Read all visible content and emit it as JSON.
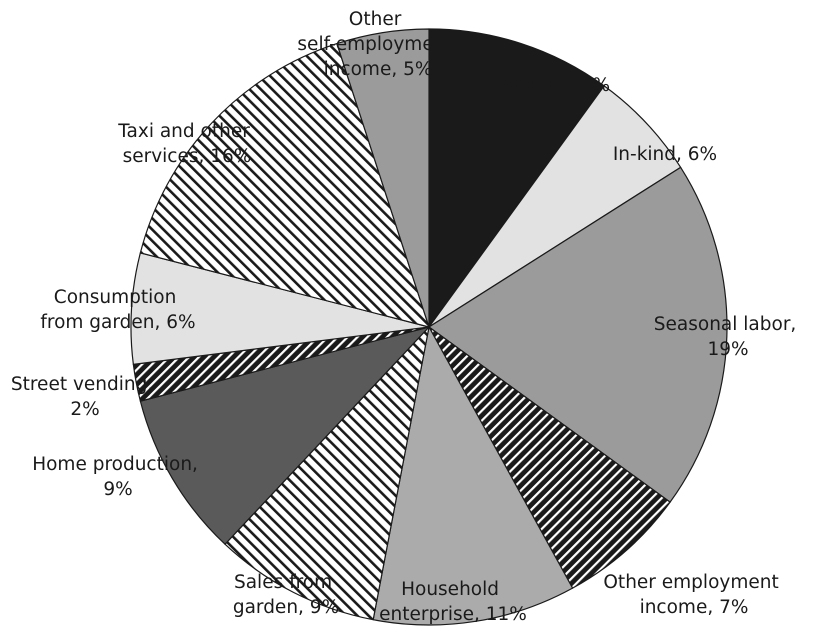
{
  "chart_data": {
    "type": "pie",
    "values": [
      10,
      6,
      19,
      7,
      11,
      9,
      9,
      2,
      6,
      16,
      5
    ],
    "value_labels": [
      "Wages, 10%",
      "In-kind, 6%",
      "Seasonal labor, 19%",
      "Other employment income, 7%",
      "Household enterprise, 11%",
      "Sales from garden, 9%",
      "Home production, 9%",
      "Street vending, 2%",
      "Consumption from garden, 6%",
      "Taxi and other services, 16%",
      "Other self-employment income, 5%"
    ],
    "colors": [
      "#1a1a1a",
      "#e2e2e2",
      "#9b9b9b",
      "dark-stripes",
      "#ababab",
      "light-stripes-back",
      "#5a5a5a",
      "dark-stripes",
      "#e2e2e2",
      "light-stripes-back",
      "#9b9b9b"
    ]
  }
}
